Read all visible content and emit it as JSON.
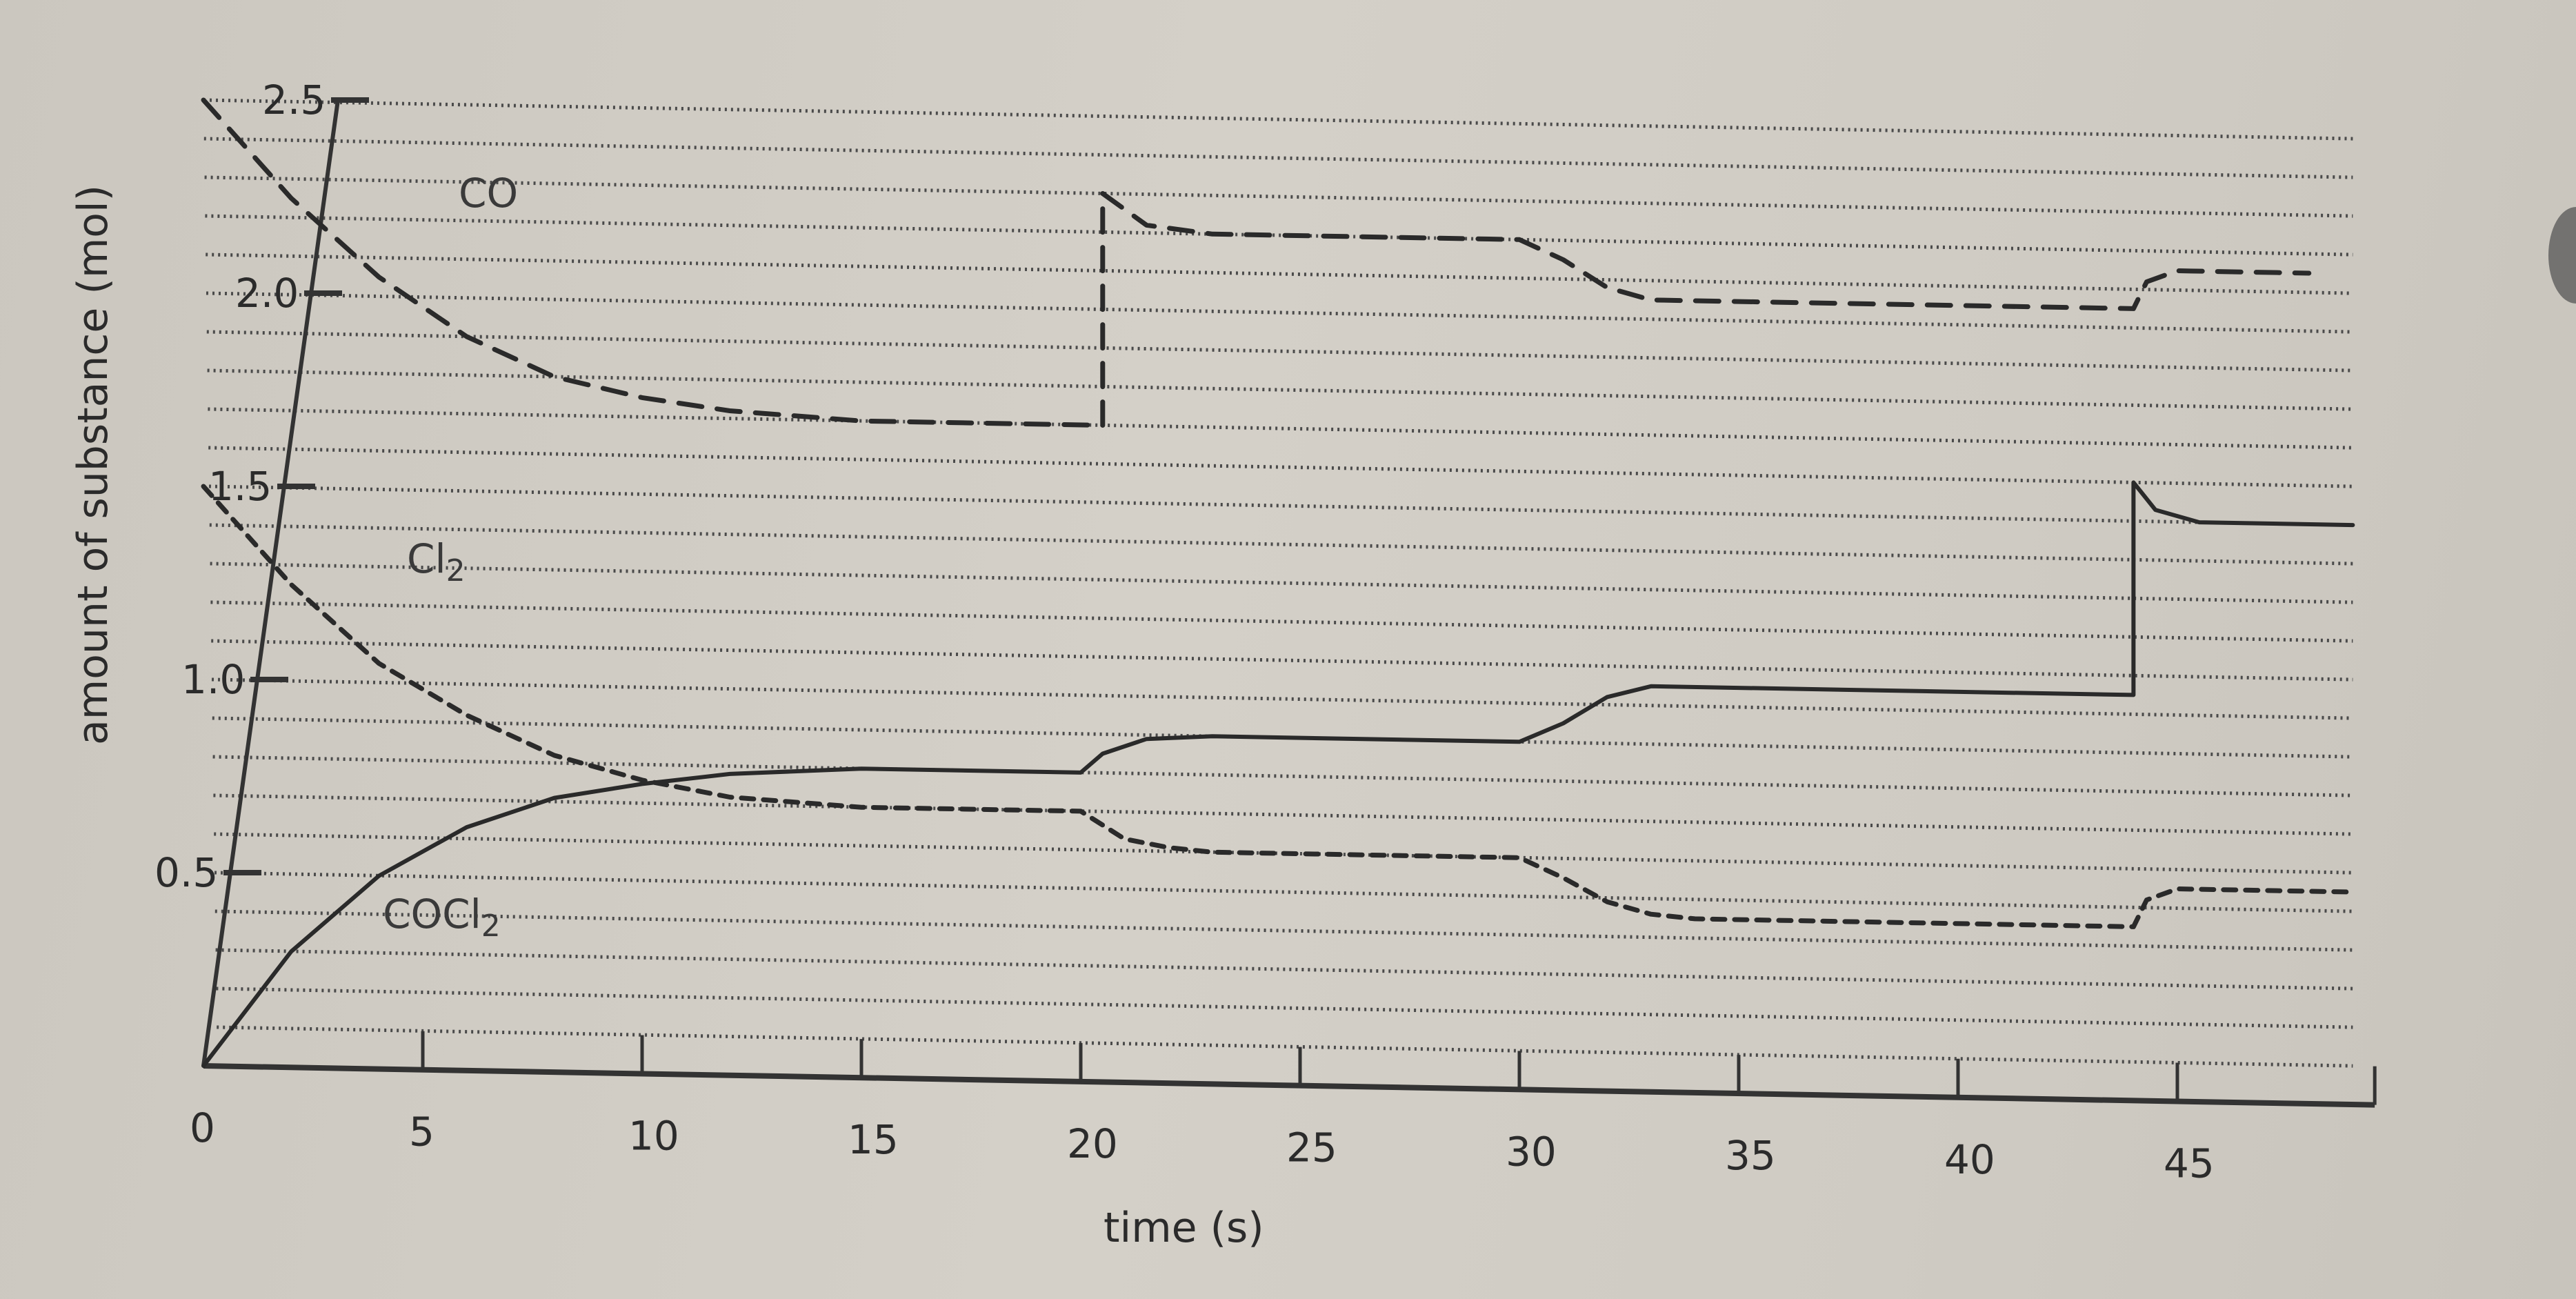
{
  "chart": {
    "xlabel": "time (s)",
    "ylabel": "amount of substance (mol)",
    "x_ticks": [
      "0",
      "5",
      "10",
      "15",
      "20",
      "25",
      "30",
      "35",
      "40",
      "45"
    ],
    "y_ticks": [
      "0.5",
      "1.0",
      "1.5",
      "2.0",
      "2.5"
    ],
    "series_labels": {
      "co": "CO",
      "cl2": "Cl",
      "cl2_sub": "2",
      "cocl2": "COCl",
      "cocl2_sub": "2"
    }
  },
  "chart_data": {
    "type": "line",
    "title": "",
    "xlabel": "time (s)",
    "ylabel": "amount of substance (mol)",
    "xlim": [
      0,
      49
    ],
    "ylim": [
      0,
      2.5
    ],
    "grid": "horizontal dotted lines every 0.1 mol",
    "x_ticks": [
      0,
      5,
      10,
      15,
      20,
      25,
      30,
      35,
      40,
      45
    ],
    "y_ticks": [
      0.5,
      1.0,
      1.5,
      2.0,
      2.5
    ],
    "series": [
      {
        "name": "CO",
        "style": "dashed",
        "points": [
          [
            0,
            2.5
          ],
          [
            2,
            2.25
          ],
          [
            4,
            2.05
          ],
          [
            6,
            1.9
          ],
          [
            8,
            1.8
          ],
          [
            10,
            1.75
          ],
          [
            12,
            1.72
          ],
          [
            15,
            1.7
          ],
          [
            20.5,
            1.7
          ],
          [
            20.5,
            2.3
          ],
          [
            21.5,
            2.22
          ],
          [
            23,
            2.2
          ],
          [
            30,
            2.2
          ],
          [
            31,
            2.15
          ],
          [
            32,
            2.08
          ],
          [
            33,
            2.05
          ],
          [
            44,
            2.05
          ],
          [
            44.3,
            2.12
          ],
          [
            45,
            2.15
          ],
          [
            48,
            2.15
          ]
        ]
      },
      {
        "name": "Cl2",
        "style": "dotted-dashed",
        "points": [
          [
            0,
            1.5
          ],
          [
            2,
            1.25
          ],
          [
            4,
            1.05
          ],
          [
            6,
            0.92
          ],
          [
            8,
            0.82
          ],
          [
            10,
            0.76
          ],
          [
            12,
            0.72
          ],
          [
            15,
            0.7
          ],
          [
            20,
            0.7
          ],
          [
            21,
            0.63
          ],
          [
            22,
            0.61
          ],
          [
            23,
            0.6
          ],
          [
            30,
            0.6
          ],
          [
            31,
            0.55
          ],
          [
            32,
            0.49
          ],
          [
            33,
            0.46
          ],
          [
            34,
            0.45
          ],
          [
            44,
            0.45
          ],
          [
            44.3,
            0.52
          ],
          [
            45,
            0.55
          ],
          [
            49,
            0.55
          ]
        ]
      },
      {
        "name": "COCl2",
        "style": "solid",
        "points": [
          [
            0,
            0
          ],
          [
            2,
            0.3
          ],
          [
            4,
            0.5
          ],
          [
            6,
            0.63
          ],
          [
            8,
            0.71
          ],
          [
            10,
            0.75
          ],
          [
            12,
            0.78
          ],
          [
            15,
            0.8
          ],
          [
            20,
            0.8
          ],
          [
            20.5,
            0.85
          ],
          [
            21.5,
            0.89
          ],
          [
            23,
            0.9
          ],
          [
            30,
            0.9
          ],
          [
            31,
            0.95
          ],
          [
            32,
            1.02
          ],
          [
            33,
            1.05
          ],
          [
            44,
            1.05
          ],
          [
            44,
            1.6
          ],
          [
            44.5,
            1.53
          ],
          [
            45.5,
            1.5
          ],
          [
            49,
            1.5
          ]
        ]
      }
    ],
    "annotations": [
      "CO",
      "Cl2",
      "COCl2"
    ]
  }
}
